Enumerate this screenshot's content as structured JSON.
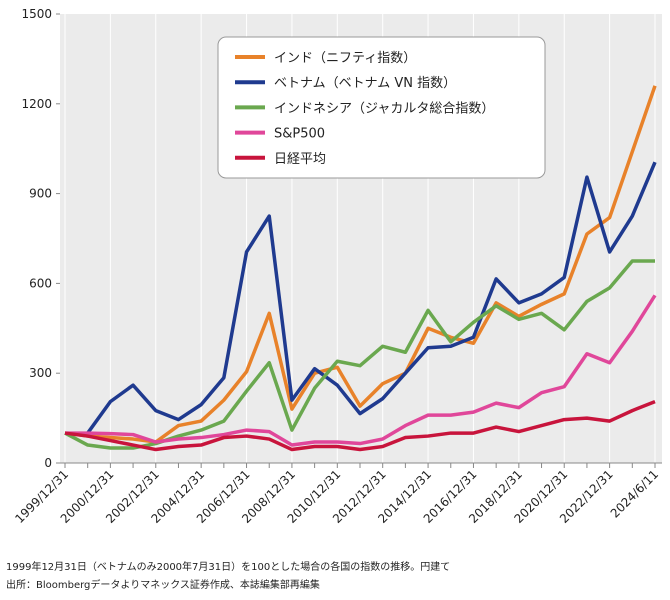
{
  "chart_data": {
    "type": "line",
    "categories": [
      "1999/12/31",
      null,
      "2000/12/31",
      null,
      "2002/12/31",
      null,
      "2004/12/31",
      null,
      "2006/12/31",
      null,
      "2008/12/31",
      null,
      "2010/12/31",
      null,
      "2012/12/31",
      null,
      "2014/12/31",
      null,
      "2016/12/31",
      null,
      "2018/12/31",
      null,
      "2020/12/31",
      null,
      "2022/12/31",
      null,
      "2024/6/11"
    ],
    "series": [
      {
        "name": "インド（ニフティ指数）",
        "color": "#e8822a",
        "values": [
          100,
          90,
          85,
          80,
          70,
          125,
          140,
          210,
          305,
          500,
          180,
          300,
          320,
          190,
          265,
          300,
          450,
          420,
          400,
          535,
          490,
          530,
          565,
          765,
          820,
          1040,
          1260
        ]
      },
      {
        "name": "ベトナム（ベトナム VN 指数）",
        "color": "#1f3a8f",
        "values": [
          null,
          100,
          205,
          260,
          175,
          145,
          195,
          285,
          705,
          825,
          210,
          315,
          260,
          165,
          215,
          300,
          385,
          390,
          420,
          615,
          535,
          565,
          620,
          955,
          705,
          825,
          1005
        ]
      },
      {
        "name": "インドネシア（ジャカルタ総合指数）",
        "color": "#6aa84f",
        "values": [
          100,
          60,
          50,
          50,
          65,
          90,
          110,
          140,
          240,
          335,
          110,
          250,
          340,
          325,
          390,
          370,
          510,
          405,
          470,
          525,
          480,
          500,
          445,
          540,
          585,
          675,
          675
        ]
      },
      {
        "name": "S&P500",
        "color": "#e0479a",
        "values": [
          100,
          100,
          98,
          95,
          70,
          80,
          85,
          95,
          110,
          105,
          60,
          70,
          70,
          65,
          80,
          125,
          160,
          160,
          170,
          200,
          185,
          235,
          255,
          365,
          335,
          440,
          560
        ]
      },
      {
        "name": "日経平均",
        "color": "#c8143c",
        "values": [
          100,
          90,
          75,
          60,
          45,
          55,
          60,
          85,
          90,
          80,
          45,
          55,
          55,
          45,
          55,
          85,
          90,
          100,
          100,
          120,
          105,
          125,
          145,
          150,
          140,
          175,
          205
        ]
      }
    ],
    "ylim": [
      0,
      1500
    ],
    "yticks": [
      0,
      300,
      600,
      900,
      1200,
      1500
    ],
    "notes": [
      "1999年12月31日（ベトナムのみ2000年7月31日）を100とした場合の各国の指数の推移。円建て",
      "出所：Bloombergデータよりマネックス証券作成、本誌編集部再編集"
    ]
  }
}
